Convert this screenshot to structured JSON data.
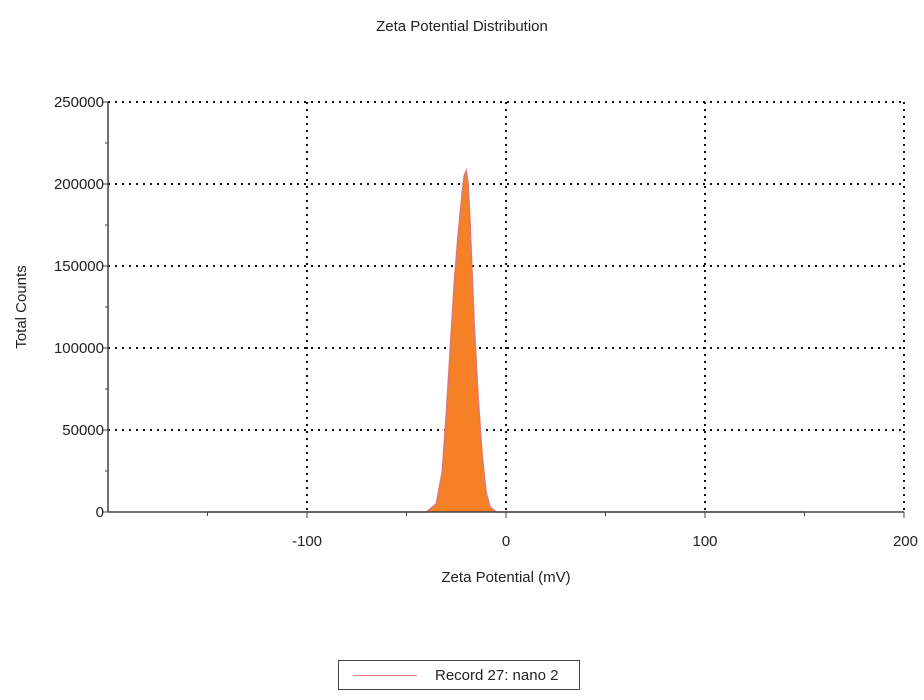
{
  "chart_data": {
    "type": "area",
    "title": "Zeta Potential Distribution",
    "xlabel": "Zeta Potential (mV)",
    "ylabel": "Total Counts",
    "xlim": [
      -200,
      200
    ],
    "ylim": [
      0,
      250000
    ],
    "x_ticks": [
      -100,
      0,
      100,
      200
    ],
    "y_ticks": [
      0,
      50000,
      100000,
      150000,
      200000,
      250000
    ],
    "grid": true,
    "legend_position": "bottom-center",
    "series": [
      {
        "name": "Record 27: nano 2",
        "color": "#f58025",
        "line_color": "#d97a7a",
        "x": [
          -150,
          -40,
          -35,
          -32,
          -30,
          -28,
          -26,
          -24,
          -22,
          -21,
          -20,
          -19,
          -18,
          -17,
          -16,
          -14,
          -12,
          -10,
          -8,
          -5,
          0,
          150
        ],
        "y": [
          0,
          0,
          5000,
          25000,
          60000,
          100000,
          140000,
          170000,
          195000,
          205000,
          208000,
          200000,
          175000,
          145000,
          115000,
          70000,
          35000,
          12000,
          3000,
          0,
          0,
          0
        ]
      }
    ]
  }
}
